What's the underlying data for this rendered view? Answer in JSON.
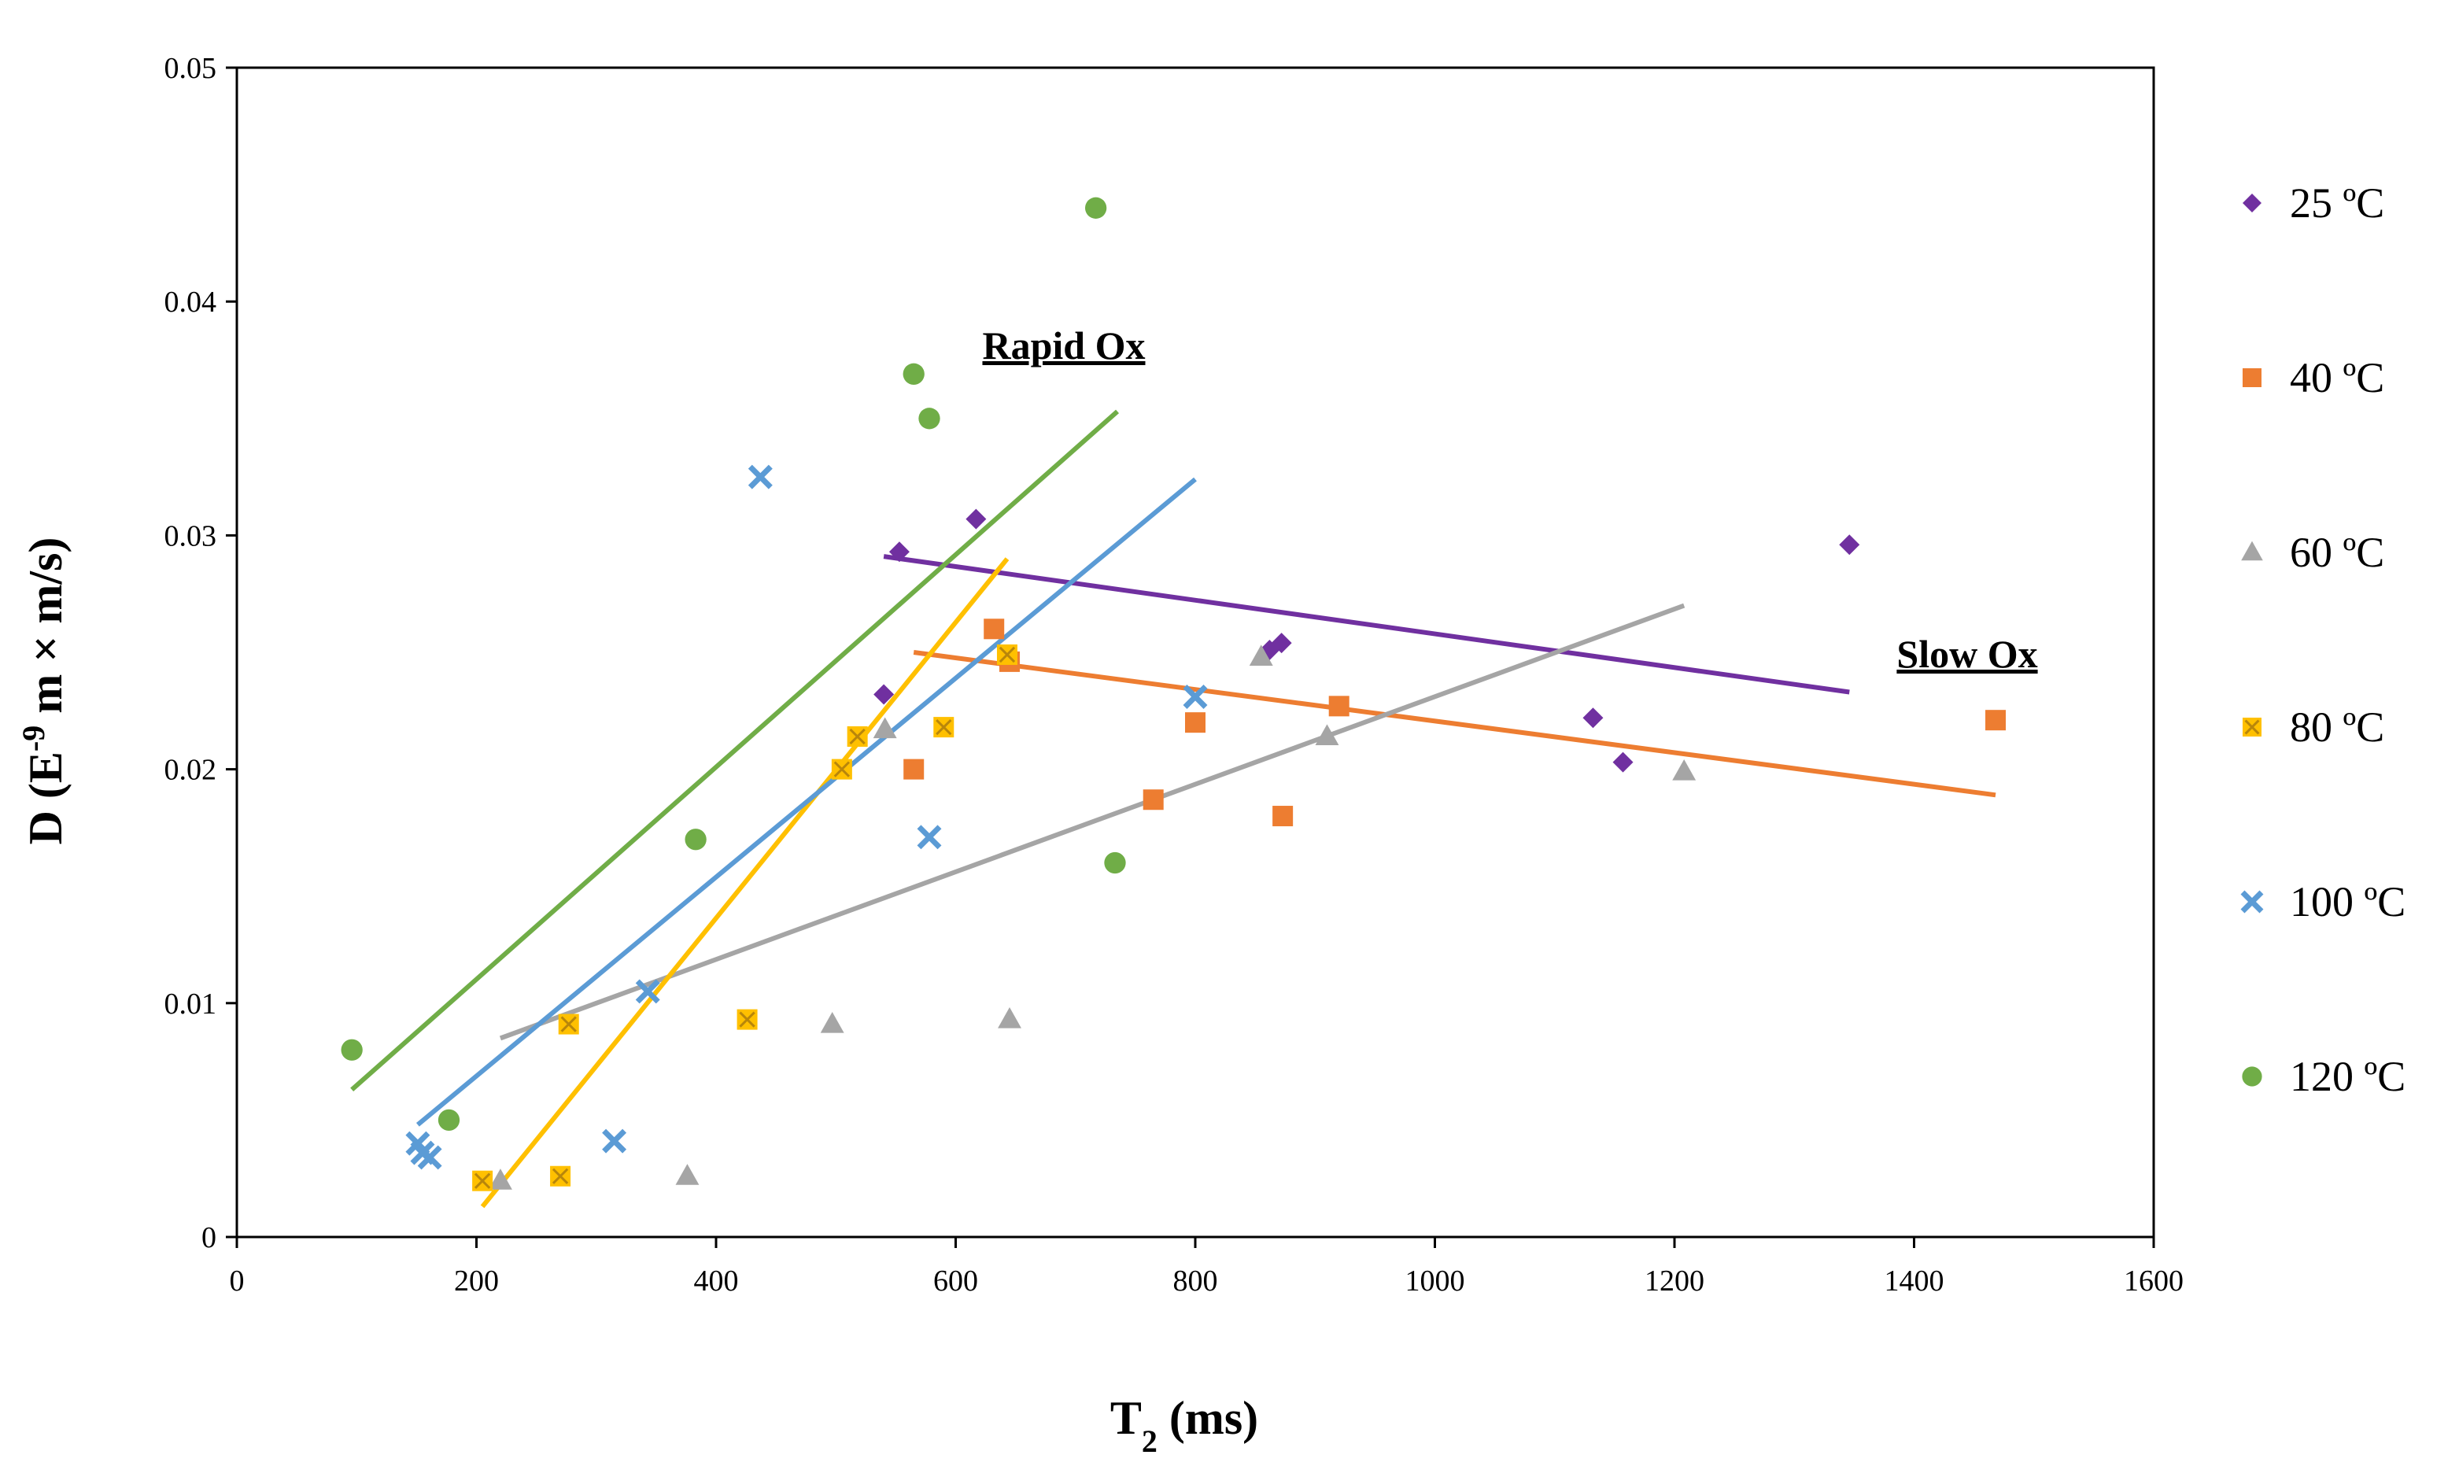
{
  "chart_data": {
    "type": "scatter",
    "xlabel_main": "T",
    "xlabel_sub": "2",
    "xlabel_rest": " (ms)",
    "ylabel_pre": "D (E",
    "ylabel_sup": "-9",
    "ylabel_post": " m × m/s)",
    "xlim": [
      0,
      1600
    ],
    "ylim": [
      0,
      0.05
    ],
    "xticks": [
      "0",
      "200",
      "400",
      "600",
      "800",
      "1000",
      "1200",
      "1400",
      "1600"
    ],
    "yticks": [
      "0",
      "0.01",
      "0.02",
      "0.03",
      "0.04",
      "0.05"
    ],
    "annotations": [
      "Rapid Ox",
      "Slow Ox"
    ],
    "series": [
      {
        "name": "25 ºC",
        "marker": "diamond",
        "color": "#7030A0",
        "points": [
          [
            540,
            0.0232
          ],
          [
            553,
            0.0293
          ],
          [
            617,
            0.0307
          ],
          [
            862,
            0.0251
          ],
          [
            872,
            0.0254
          ],
          [
            1132,
            0.0222
          ],
          [
            1157,
            0.0203
          ],
          [
            1346,
            0.0296
          ]
        ],
        "trendline": [
          [
            540,
            0.0291
          ],
          [
            1346,
            0.0233
          ]
        ]
      },
      {
        "name": "40 ºC",
        "marker": "square",
        "color": "#ED7D31",
        "points": [
          [
            565,
            0.02
          ],
          [
            632,
            0.026
          ],
          [
            645,
            0.0246
          ],
          [
            765,
            0.0187
          ],
          [
            800,
            0.022
          ],
          [
            873,
            0.018
          ],
          [
            920,
            0.0227
          ],
          [
            1468,
            0.0221
          ]
        ],
        "trendline": [
          [
            565,
            0.025
          ],
          [
            1468,
            0.0189
          ]
        ]
      },
      {
        "name": "60 ºC",
        "marker": "triangle",
        "color": "#A5A5A5",
        "points": [
          [
            220,
            0.0024
          ],
          [
            376,
            0.0026
          ],
          [
            497,
            0.0091
          ],
          [
            541,
            0.0217
          ],
          [
            645,
            0.0093
          ],
          [
            855,
            0.0248
          ],
          [
            910,
            0.0214
          ],
          [
            1208,
            0.0199
          ]
        ],
        "trendline": [
          [
            220,
            0.0085
          ],
          [
            1208,
            0.027
          ]
        ]
      },
      {
        "name": "80 ºC",
        "marker": "square-x",
        "color": "#FFC000",
        "points": [
          [
            205,
            0.0024
          ],
          [
            270,
            0.0026
          ],
          [
            277,
            0.0091
          ],
          [
            426,
            0.0093
          ],
          [
            505,
            0.02
          ],
          [
            518,
            0.0214
          ],
          [
            590,
            0.0218
          ],
          [
            643,
            0.0249
          ]
        ],
        "trendline": [
          [
            205,
            0.0013
          ],
          [
            643,
            0.029
          ]
        ]
      },
      {
        "name": "100 ºC",
        "marker": "x",
        "color": "#5B9BD5",
        "points": [
          [
            151,
            0.004
          ],
          [
            155,
            0.0036
          ],
          [
            161,
            0.0034
          ],
          [
            315,
            0.0041
          ],
          [
            343,
            0.0105
          ],
          [
            437,
            0.0325
          ],
          [
            578,
            0.0171
          ],
          [
            800,
            0.0231
          ]
        ],
        "trendline": [
          [
            151,
            0.0048
          ],
          [
            800,
            0.0324
          ]
        ]
      },
      {
        "name": "120 ºC",
        "marker": "circle",
        "color": "#70AD47",
        "points": [
          [
            96,
            0.008
          ],
          [
            177,
            0.005
          ],
          [
            383,
            0.017
          ],
          [
            565,
            0.0369
          ],
          [
            578,
            0.035
          ],
          [
            717,
            0.044
          ],
          [
            733,
            0.016
          ]
        ],
        "trendline": [
          [
            96,
            0.0063
          ],
          [
            735,
            0.0353
          ]
        ]
      }
    ]
  }
}
